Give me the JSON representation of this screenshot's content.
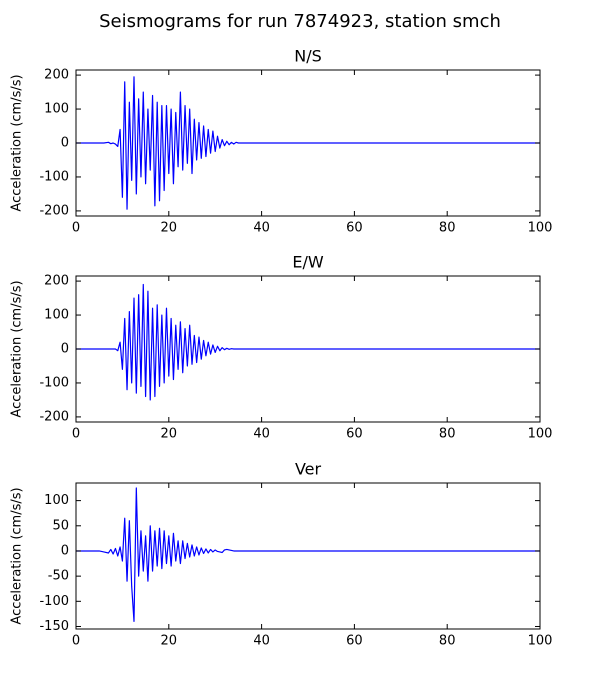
{
  "title": "Seismograms for run 7874923, station smch",
  "chart_data": [
    {
      "type": "line",
      "title": "N/S",
      "ylabel": "Acceleration (cm/s/s)",
      "color": "#0000ff",
      "xlim": [
        0,
        100
      ],
      "xticks": [
        0,
        20,
        40,
        60,
        80,
        100
      ],
      "ylim": [
        -215,
        215
      ],
      "yticks": [
        -200,
        -100,
        0,
        100,
        200
      ],
      "x": [
        0,
        5,
        6,
        7,
        7.5,
        8,
        8.5,
        9,
        9.5,
        10,
        10.5,
        11,
        11.5,
        12,
        12.5,
        13,
        13.5,
        14,
        14.5,
        15,
        15.5,
        16,
        16.5,
        17,
        17.5,
        18,
        18.5,
        19,
        19.5,
        20,
        20.5,
        21,
        21.5,
        22,
        22.5,
        23,
        23.5,
        24,
        24.5,
        25,
        25.5,
        26,
        26.5,
        27,
        27.5,
        28,
        28.5,
        29,
        29.5,
        30,
        30.5,
        31,
        31.5,
        32,
        32.5,
        33,
        33.5,
        34,
        34.5,
        35,
        35.5,
        36,
        38,
        100
      ],
      "values": [
        0,
        0,
        0,
        2,
        -2,
        0,
        -3,
        -10,
        40,
        -160,
        180,
        -195,
        120,
        -110,
        195,
        -150,
        130,
        -100,
        150,
        -120,
        100,
        -80,
        140,
        -185,
        120,
        -170,
        110,
        -140,
        110,
        -90,
        100,
        -120,
        90,
        -70,
        150,
        -80,
        110,
        -60,
        100,
        -90,
        70,
        -50,
        60,
        -45,
        50,
        -40,
        40,
        -30,
        35,
        -25,
        20,
        -15,
        10,
        -8,
        5,
        -5,
        2,
        -3,
        2,
        0,
        0,
        0,
        0,
        0
      ]
    },
    {
      "type": "line",
      "title": "E/W",
      "ylabel": "Acceleration (cm/s/s)",
      "color": "#0000ff",
      "xlim": [
        0,
        100
      ],
      "xticks": [
        0,
        20,
        40,
        60,
        80,
        100
      ],
      "ylim": [
        -215,
        215
      ],
      "yticks": [
        -200,
        -100,
        0,
        100,
        200
      ],
      "x": [
        0,
        5,
        6,
        7,
        7.5,
        8,
        8.5,
        9,
        9.5,
        10,
        10.5,
        11,
        11.5,
        12,
        12.5,
        13,
        13.5,
        14,
        14.5,
        15,
        15.5,
        16,
        16.5,
        17,
        17.5,
        18,
        18.5,
        19,
        19.5,
        20,
        20.5,
        21,
        21.5,
        22,
        22.5,
        23,
        23.5,
        24,
        24.5,
        25,
        25.5,
        26,
        26.5,
        27,
        27.5,
        28,
        28.5,
        29,
        29.5,
        30,
        30.5,
        31,
        31.5,
        32,
        32.5,
        33,
        33.5,
        34,
        34.5,
        35,
        35.5,
        36,
        38,
        100
      ],
      "values": [
        0,
        0,
        0,
        0,
        0,
        0,
        0,
        -5,
        20,
        -60,
        90,
        -120,
        110,
        -100,
        150,
        -130,
        160,
        -110,
        190,
        -140,
        170,
        -150,
        120,
        -140,
        130,
        -110,
        100,
        -100,
        120,
        -80,
        90,
        -90,
        70,
        -60,
        80,
        -70,
        60,
        -50,
        70,
        -45,
        40,
        -40,
        35,
        -30,
        25,
        -20,
        20,
        -15,
        12,
        -10,
        8,
        -5,
        4,
        -2,
        2,
        -1,
        1,
        0,
        0,
        0,
        0,
        0,
        0,
        0
      ]
    },
    {
      "type": "line",
      "title": "Ver",
      "ylabel": "Acceleration (cm/s/s)",
      "color": "#0000ff",
      "xlim": [
        0,
        100
      ],
      "xticks": [
        0,
        20,
        40,
        60,
        80,
        100
      ],
      "ylim": [
        -155,
        135
      ],
      "yticks": [
        -150,
        -100,
        -50,
        0,
        50,
        100
      ],
      "x": [
        0,
        5,
        6,
        7,
        7.5,
        8,
        8.5,
        9,
        9.5,
        10,
        10.5,
        11,
        11.5,
        12,
        12.5,
        13,
        13.5,
        14,
        14.5,
        15,
        15.5,
        16,
        16.5,
        17,
        17.5,
        18,
        18.5,
        19,
        19.5,
        20,
        20.5,
        21,
        21.5,
        22,
        22.5,
        23,
        23.5,
        24,
        24.5,
        25,
        25.5,
        26,
        26.5,
        27,
        27.5,
        28,
        28.5,
        29,
        29.5,
        30,
        30.5,
        31,
        31.5,
        32,
        32.5,
        33,
        33.5,
        34,
        34.5,
        35,
        35.5,
        36,
        38,
        100
      ],
      "values": [
        0,
        0,
        -2,
        -4,
        3,
        -6,
        5,
        -10,
        8,
        -20,
        65,
        -60,
        60,
        -70,
        -140,
        125,
        -50,
        40,
        -40,
        30,
        -60,
        50,
        -40,
        40,
        -30,
        45,
        -35,
        40,
        -25,
        30,
        -30,
        35,
        -20,
        20,
        -25,
        20,
        -15,
        15,
        -12,
        12,
        -10,
        8,
        -8,
        6,
        -5,
        4,
        -4,
        3,
        -2,
        2,
        -1,
        -2,
        -3,
        2,
        3,
        2,
        1,
        0,
        0,
        0,
        0,
        0,
        0,
        0
      ]
    }
  ]
}
